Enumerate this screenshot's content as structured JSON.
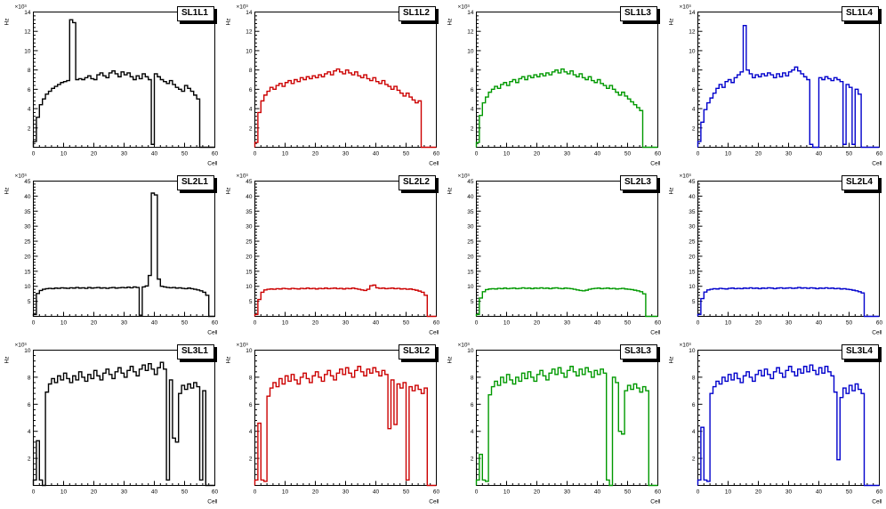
{
  "page": {
    "background": "#ffffff",
    "description_labels": {
      "y_axis": "Hz",
      "x_axis": "Cell",
      "exponent": "×10³"
    }
  },
  "chart_data": [
    {
      "type": "bar",
      "subtype": "step-histogram",
      "title": "SL1L1",
      "color": "#000000",
      "xlabel": "Cell",
      "ylabel": "Hz",
      "scale_label": "×10³",
      "xlim": [
        0,
        60
      ],
      "ylim": [
        0,
        14
      ],
      "xtick_step": 10,
      "ytick_step": 2,
      "values": [
        0.6,
        3.1,
        4.4,
        5.0,
        5.5,
        5.8,
        6.1,
        6.3,
        6.5,
        6.7,
        6.8,
        6.9,
        13.2,
        12.9,
        7.0,
        7.1,
        7.0,
        7.2,
        7.4,
        7.1,
        7.0,
        7.5,
        7.7,
        7.4,
        7.2,
        7.7,
        7.9,
        7.6,
        7.3,
        7.8,
        7.5,
        7.7,
        7.3,
        7.0,
        7.4,
        7.1,
        7.6,
        7.3,
        7.0,
        0.3,
        7.6,
        7.3,
        7.0,
        6.8,
        6.6,
        6.9,
        6.5,
        6.2,
        6.0,
        5.8,
        6.4,
        6.1,
        5.8,
        5.4,
        5.0,
        0,
        0,
        0,
        0,
        0
      ]
    },
    {
      "type": "bar",
      "subtype": "step-histogram",
      "title": "SL1L2",
      "color": "#cc0000",
      "xlabel": "Cell",
      "ylabel": "Hz",
      "scale_label": "×10³",
      "xlim": [
        0,
        60
      ],
      "ylim": [
        0,
        14
      ],
      "xtick_step": 10,
      "ytick_step": 2,
      "values": [
        0.5,
        3.6,
        4.8,
        5.4,
        5.8,
        6.2,
        6.0,
        6.4,
        6.6,
        6.3,
        6.7,
        6.9,
        6.6,
        7.0,
        6.8,
        7.2,
        7.0,
        7.3,
        7.1,
        7.4,
        7.2,
        7.5,
        7.3,
        7.6,
        7.8,
        7.5,
        7.9,
        8.1,
        7.8,
        7.6,
        8.0,
        7.7,
        7.5,
        7.8,
        7.4,
        7.2,
        7.5,
        7.1,
        6.9,
        7.2,
        6.8,
        6.6,
        6.9,
        6.5,
        6.3,
        6.0,
        6.3,
        5.9,
        5.6,
        5.3,
        5.6,
        5.2,
        4.9,
        4.6,
        4.8,
        0,
        0,
        0,
        0,
        0
      ]
    },
    {
      "type": "bar",
      "subtype": "step-histogram",
      "title": "SL1L3",
      "color": "#009900",
      "xlabel": "Cell",
      "ylabel": "Hz",
      "scale_label": "×10³",
      "xlim": [
        0,
        60
      ],
      "ylim": [
        0,
        14
      ],
      "xtick_step": 10,
      "ytick_step": 2,
      "values": [
        0.5,
        3.3,
        4.6,
        5.2,
        5.7,
        6.0,
        6.3,
        6.1,
        6.5,
        6.7,
        6.4,
        6.8,
        7.0,
        6.7,
        7.1,
        7.3,
        7.0,
        7.4,
        7.2,
        7.5,
        7.3,
        7.6,
        7.4,
        7.7,
        7.5,
        7.8,
        8.0,
        7.7,
        8.1,
        7.8,
        7.6,
        7.9,
        7.5,
        7.3,
        7.6,
        7.2,
        7.0,
        7.3,
        6.9,
        6.7,
        7.0,
        6.6,
        6.4,
        6.1,
        6.4,
        6.0,
        5.7,
        5.4,
        5.7,
        5.3,
        5.0,
        4.7,
        4.4,
        4.1,
        3.8,
        0,
        0,
        0,
        0,
        0
      ]
    },
    {
      "type": "bar",
      "subtype": "step-histogram",
      "title": "SL1L4",
      "color": "#0000cc",
      "xlabel": "Cell",
      "ylabel": "Hz",
      "scale_label": "×10³",
      "xlim": [
        0,
        60
      ],
      "ylim": [
        0,
        14
      ],
      "xtick_step": 10,
      "ytick_step": 2,
      "values": [
        0.6,
        2.6,
        3.9,
        4.6,
        5.1,
        5.6,
        6.1,
        6.5,
        6.2,
        6.8,
        7.0,
        6.7,
        7.2,
        7.5,
        7.8,
        12.6,
        8.0,
        7.6,
        7.2,
        7.5,
        7.3,
        7.6,
        7.4,
        7.7,
        7.5,
        7.2,
        7.6,
        7.3,
        7.7,
        7.4,
        7.8,
        8.0,
        8.3,
        7.9,
        7.6,
        7.3,
        7.0,
        0.3,
        0,
        0,
        7.2,
        7.0,
        7.3,
        7.1,
        6.9,
        7.2,
        7.0,
        6.8,
        0.3,
        6.5,
        6.2,
        0.3,
        6.0,
        5.5,
        0,
        0,
        0,
        0,
        0,
        0
      ]
    },
    {
      "type": "bar",
      "subtype": "step-histogram",
      "title": "SL2L1",
      "color": "#000000",
      "xlabel": "Cell",
      "ylabel": "Hz",
      "scale_label": "×10³",
      "xlim": [
        0,
        60
      ],
      "ylim": [
        0,
        45
      ],
      "xtick_step": 10,
      "ytick_step": 5,
      "values": [
        0.6,
        7.6,
        8.6,
        9.0,
        9.2,
        9.3,
        9.2,
        9.4,
        9.3,
        9.5,
        9.4,
        9.3,
        9.5,
        9.4,
        9.6,
        9.4,
        9.5,
        9.3,
        9.6,
        9.4,
        9.5,
        9.6,
        9.4,
        9.5,
        9.3,
        9.5,
        9.6,
        9.4,
        9.5,
        9.6,
        9.5,
        9.7,
        9.5,
        9.8,
        9.6,
        0.4,
        9.8,
        10.1,
        13.6,
        41.0,
        40.4,
        12.4,
        10.0,
        9.8,
        9.6,
        9.5,
        9.6,
        9.4,
        9.5,
        9.3,
        9.2,
        9.4,
        9.2,
        9.0,
        8.8,
        8.5,
        8.0,
        7.0,
        0,
        0
      ]
    },
    {
      "type": "bar",
      "subtype": "step-histogram",
      "title": "SL2L2",
      "color": "#cc0000",
      "xlabel": "Cell",
      "ylabel": "Hz",
      "scale_label": "×10³",
      "xlim": [
        0,
        60
      ],
      "ylim": [
        0,
        45
      ],
      "xtick_step": 10,
      "ytick_step": 5,
      "values": [
        0.6,
        5.6,
        8.0,
        8.8,
        9.0,
        9.1,
        9.0,
        9.2,
        9.1,
        9.3,
        9.2,
        9.1,
        9.3,
        9.2,
        9.1,
        9.3,
        9.2,
        9.4,
        9.2,
        9.3,
        9.1,
        9.3,
        9.2,
        9.4,
        9.2,
        9.3,
        9.4,
        9.2,
        9.3,
        9.1,
        9.3,
        9.2,
        9.4,
        9.2,
        9.0,
        8.8,
        8.6,
        9.0,
        10.2,
        10.4,
        9.5,
        9.3,
        9.4,
        9.2,
        9.3,
        9.4,
        9.2,
        9.3,
        9.1,
        9.2,
        9.0,
        9.1,
        8.9,
        8.7,
        8.4,
        8.0,
        7.0,
        0,
        0,
        0
      ]
    },
    {
      "type": "bar",
      "subtype": "step-histogram",
      "title": "SL2L3",
      "color": "#009900",
      "xlabel": "Cell",
      "ylabel": "Hz",
      "scale_label": "×10³",
      "xlim": [
        0,
        60
      ],
      "ylim": [
        0,
        45
      ],
      "xtick_step": 10,
      "ytick_step": 5,
      "values": [
        0.6,
        6.1,
        8.2,
        8.9,
        9.1,
        9.2,
        9.1,
        9.3,
        9.2,
        9.4,
        9.2,
        9.3,
        9.4,
        9.2,
        9.3,
        9.5,
        9.3,
        9.4,
        9.2,
        9.4,
        9.3,
        9.5,
        9.3,
        9.4,
        9.2,
        9.4,
        9.5,
        9.3,
        9.2,
        9.4,
        9.3,
        9.2,
        9.0,
        8.8,
        8.6,
        8.5,
        8.7,
        9.0,
        9.2,
        9.3,
        9.4,
        9.2,
        9.3,
        9.4,
        9.2,
        9.3,
        9.1,
        9.2,
        9.3,
        9.1,
        9.0,
        8.9,
        8.7,
        8.5,
        8.2,
        7.5,
        0,
        0,
        0,
        0
      ]
    },
    {
      "type": "bar",
      "subtype": "step-histogram",
      "title": "SL2L4",
      "color": "#0000cc",
      "xlabel": "Cell",
      "ylabel": "Hz",
      "scale_label": "×10³",
      "xlim": [
        0,
        60
      ],
      "ylim": [
        0,
        45
      ],
      "xtick_step": 10,
      "ytick_step": 5,
      "values": [
        0.6,
        5.9,
        8.1,
        8.8,
        9.0,
        9.2,
        9.1,
        9.3,
        9.2,
        9.1,
        9.3,
        9.4,
        9.2,
        9.3,
        9.2,
        9.4,
        9.3,
        9.5,
        9.3,
        9.4,
        9.2,
        9.4,
        9.3,
        9.5,
        9.4,
        9.2,
        9.4,
        9.5,
        9.3,
        9.4,
        9.5,
        9.3,
        9.4,
        9.6,
        9.4,
        9.5,
        9.3,
        9.5,
        9.4,
        9.2,
        9.4,
        9.3,
        9.5,
        9.3,
        9.4,
        9.2,
        9.3,
        9.1,
        9.2,
        9.0,
        8.9,
        8.7,
        8.5,
        8.2,
        7.8,
        0,
        0,
        0,
        0,
        0
      ]
    },
    {
      "type": "bar",
      "subtype": "step-histogram",
      "title": "SL3L1",
      "color": "#000000",
      "xlabel": "Cell",
      "ylabel": "Hz",
      "scale_label": "×10³",
      "xlim": [
        0,
        60
      ],
      "ylim": [
        0,
        10
      ],
      "xtick_step": 10,
      "ytick_step": 2,
      "values": [
        0.4,
        3.3,
        0.4,
        0,
        6.9,
        7.5,
        7.9,
        7.6,
        8.1,
        7.8,
        8.3,
        7.9,
        7.6,
        8.1,
        7.8,
        8.4,
        8.0,
        7.7,
        8.2,
        7.9,
        8.5,
        8.1,
        7.8,
        8.3,
        8.6,
        8.2,
        7.9,
        8.4,
        8.7,
        8.3,
        8.0,
        8.5,
        8.8,
        8.4,
        8.1,
        8.6,
        8.9,
        8.5,
        9.0,
        8.6,
        8.2,
        8.7,
        9.1,
        8.6,
        0.4,
        7.8,
        3.5,
        3.2,
        6.8,
        7.4,
        7.1,
        7.5,
        7.2,
        7.6,
        7.3,
        0.4,
        7.0,
        0,
        0,
        0
      ]
    },
    {
      "type": "bar",
      "subtype": "step-histogram",
      "title": "SL3L2",
      "color": "#cc0000",
      "xlabel": "Cell",
      "ylabel": "Hz",
      "scale_label": "×10³",
      "xlim": [
        0,
        60
      ],
      "ylim": [
        0,
        10
      ],
      "xtick_step": 10,
      "ytick_step": 2,
      "values": [
        0.4,
        4.6,
        0.4,
        0.3,
        6.6,
        7.2,
        7.6,
        7.3,
        7.9,
        7.5,
        8.1,
        7.7,
        8.2,
        7.8,
        7.5,
        8.0,
        8.3,
        7.9,
        7.6,
        8.1,
        8.4,
        8.0,
        7.7,
        8.2,
        8.5,
        8.1,
        7.8,
        8.3,
        8.6,
        8.2,
        8.7,
        8.3,
        8.0,
        8.5,
        8.8,
        8.4,
        8.1,
        8.6,
        8.3,
        8.7,
        8.4,
        8.1,
        8.5,
        8.2,
        4.2,
        7.8,
        4.5,
        7.5,
        7.2,
        7.6,
        0.4,
        7.3,
        7.0,
        7.4,
        7.1,
        6.8,
        7.2,
        0,
        0,
        0
      ]
    },
    {
      "type": "bar",
      "subtype": "step-histogram",
      "title": "SL3L3",
      "color": "#009900",
      "xlabel": "Cell",
      "ylabel": "Hz",
      "scale_label": "×10³",
      "xlim": [
        0,
        60
      ],
      "ylim": [
        0,
        10
      ],
      "xtick_step": 10,
      "ytick_step": 2,
      "values": [
        0.4,
        2.3,
        0.4,
        0.3,
        6.7,
        7.3,
        7.7,
        7.4,
        8.0,
        7.6,
        8.2,
        7.8,
        7.5,
        8.0,
        7.7,
        8.3,
        7.9,
        8.4,
        8.0,
        7.7,
        8.2,
        8.5,
        8.1,
        7.8,
        8.3,
        8.6,
        8.2,
        8.7,
        8.3,
        8.0,
        8.5,
        8.8,
        8.4,
        8.1,
        8.6,
        8.2,
        8.7,
        8.4,
        8.0,
        8.5,
        8.2,
        8.6,
        8.3,
        0.4,
        0,
        8.0,
        7.6,
        4.0,
        3.8,
        7.0,
        7.4,
        7.1,
        7.5,
        7.2,
        6.9,
        7.3,
        7.0,
        0,
        0,
        0
      ]
    },
    {
      "type": "bar",
      "subtype": "step-histogram",
      "title": "SL3L4",
      "color": "#0000cc",
      "xlabel": "Cell",
      "ylabel": "Hz",
      "scale_label": "×10³",
      "xlim": [
        0,
        60
      ],
      "ylim": [
        0,
        10
      ],
      "xtick_step": 10,
      "ytick_step": 2,
      "values": [
        0.4,
        4.3,
        0.4,
        0.3,
        6.8,
        7.3,
        7.7,
        7.5,
        8.0,
        7.7,
        8.2,
        7.8,
        8.3,
        7.9,
        7.6,
        8.1,
        8.4,
        8.0,
        7.7,
        8.2,
        8.5,
        8.1,
        8.6,
        8.2,
        7.9,
        8.4,
        8.7,
        8.3,
        8.0,
        8.5,
        8.8,
        8.4,
        8.1,
        8.6,
        8.3,
        8.8,
        8.4,
        8.9,
        8.5,
        8.2,
        8.7,
        8.3,
        8.8,
        8.4,
        8.1,
        6.9,
        1.9,
        6.5,
        7.2,
        6.8,
        7.4,
        7.0,
        7.5,
        7.1,
        6.8,
        0,
        0,
        0,
        0,
        0
      ]
    }
  ]
}
